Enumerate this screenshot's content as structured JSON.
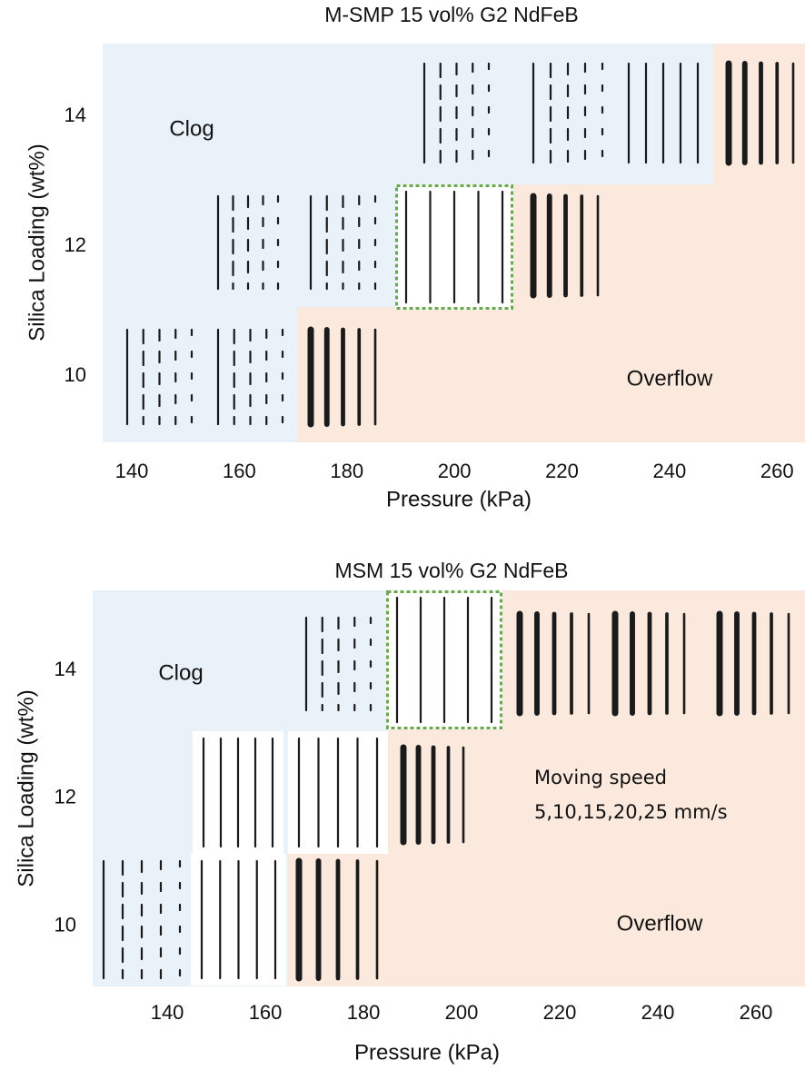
{
  "chart_data": [
    {
      "type": "phase-map",
      "title": "M-SMP 15 vol% G2 NdFeB",
      "x_label": "Pressure (kPa)",
      "y_label": "Silica Loading (wt%)",
      "xlim": [
        134.6,
        265.2
      ],
      "xticks": [
        140,
        160,
        180,
        200,
        220,
        240,
        260
      ],
      "ylim": [
        8.98,
        15.12
      ],
      "yticks": [
        10,
        12,
        14
      ],
      "annotations": [
        "Clog",
        "Overflow"
      ]
    },
    {
      "type": "phase-map",
      "title": "MSM 15 vol% G2 NdFeB",
      "x_label": "Pressure (kPa)",
      "y_label": "Silica Loading (wt%)",
      "xlim": [
        124.8,
        270
      ],
      "xticks": [
        140,
        160,
        180,
        200,
        220,
        240,
        260
      ],
      "ylim": [
        9.06,
        15.25
      ],
      "yticks": [
        10,
        12,
        14
      ],
      "annotations": [
        "Clog",
        "Moving speed",
        "5,10,15,20,25 mm/s",
        "Overflow"
      ]
    }
  ]
}
